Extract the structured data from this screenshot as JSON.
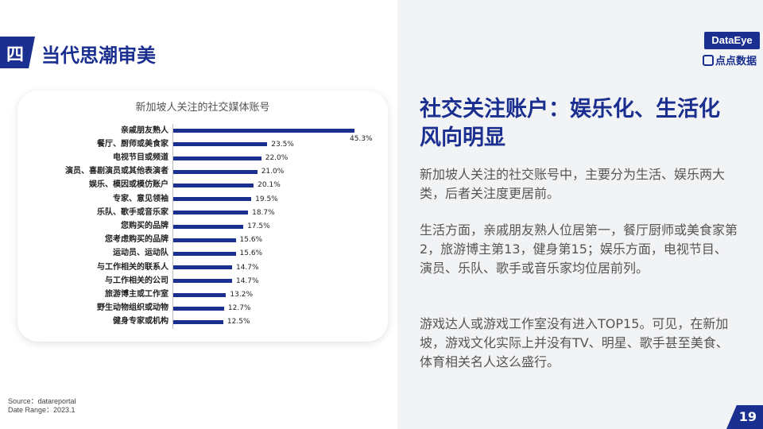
{
  "header": {
    "section_number": "四",
    "section_title": "当代思潮审美",
    "brand_primary": "DataEye",
    "brand_secondary": "点点数据"
  },
  "chart_data": {
    "type": "bar",
    "orientation": "horizontal",
    "title": "新加坡人关注的社交媒体账号",
    "categories": [
      "亲戚朋友熟人",
      "餐厅、厨师或美食家",
      "电视节目或频道",
      "演员、喜剧演员或其他表演者",
      "娱乐、模因或模仿账户",
      "专家、意见领袖",
      "乐队、歌手或音乐家",
      "您购买的品牌",
      "您考虑购买的品牌",
      "运动员、运动队",
      "与工作相关的联系人",
      "与工作相关的公司",
      "旅游博主或工作室",
      "野生动物组织或动物",
      "健身专家或机构"
    ],
    "values": [
      45.3,
      23.5,
      22.0,
      21.0,
      20.1,
      19.5,
      18.7,
      17.5,
      15.6,
      15.6,
      14.7,
      14.7,
      13.2,
      12.7,
      12.5
    ],
    "value_labels": [
      "45.3%",
      "23.5%",
      "22.0%",
      "21.0%",
      "20.1%",
      "19.5%",
      "18.7%",
      "17.5%",
      "15.6%",
      "15.6%",
      "14.7%",
      "14.7%",
      "13.2%",
      "12.7%",
      "12.5%"
    ],
    "unit": "%",
    "bar_color": "#1a2f8f"
  },
  "right": {
    "title": "社交关注账户：娱乐化、生活化风向明显",
    "paragraphs": [
      "新加坡人关注的社交账号中，主要分为生活、娱乐两大类，后者关注度更居前。",
      "生活方面，亲戚朋友熟人位居第一，餐厅厨师或美食家第2，旅游博主第13，健身第15；娱乐方面，电视节目、演员、乐队、歌手或音乐家均位居前列。",
      "游戏达人或游戏工作室没有进入TOP15。可见，在新加坡，游戏文化实际上并没有TV、明星、歌手甚至美食、体育相关名人这么盛行。"
    ]
  },
  "footer": {
    "source": "Source：datareportal",
    "date_range": "Date Range：2023.1",
    "page_number": "19"
  },
  "colors": {
    "accent": "#1a2f8f",
    "panel_bg": "#f2f3f5"
  }
}
